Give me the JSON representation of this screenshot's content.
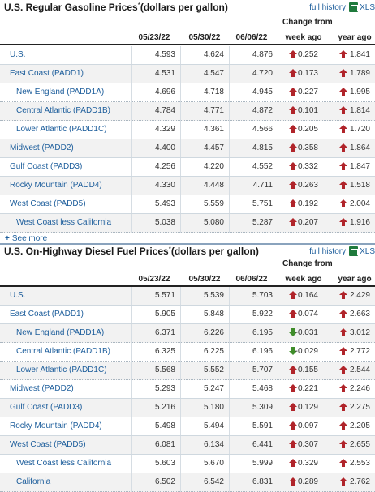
{
  "gasoline": {
    "title": "U.S. Regular Gasoline Prices",
    "title_sup": "*",
    "title_unit": "(dollars per gallon)",
    "full_history": "full history",
    "xls": "XLS",
    "change_from": "Change from",
    "columns": [
      "05/23/22",
      "05/30/22",
      "06/06/22",
      "week ago",
      "year ago"
    ],
    "rows": [
      {
        "label": "U.S.",
        "indent": 0,
        "v1": "4.593",
        "v2": "4.624",
        "v3": "4.876",
        "wk_dir": "up",
        "wk": "0.252",
        "yr_dir": "up",
        "yr": "1.841"
      },
      {
        "label": "East Coast (PADD1)",
        "indent": 0,
        "v1": "4.531",
        "v2": "4.547",
        "v3": "4.720",
        "wk_dir": "up",
        "wk": "0.173",
        "yr_dir": "up",
        "yr": "1.789"
      },
      {
        "label": "New England (PADD1A)",
        "indent": 1,
        "v1": "4.696",
        "v2": "4.718",
        "v3": "4.945",
        "wk_dir": "up",
        "wk": "0.227",
        "yr_dir": "up",
        "yr": "1.995"
      },
      {
        "label": "Central Atlantic (PADD1B)",
        "indent": 1,
        "v1": "4.784",
        "v2": "4.771",
        "v3": "4.872",
        "wk_dir": "up",
        "wk": "0.101",
        "yr_dir": "up",
        "yr": "1.814"
      },
      {
        "label": "Lower Atlantic (PADD1C)",
        "indent": 1,
        "v1": "4.329",
        "v2": "4.361",
        "v3": "4.566",
        "wk_dir": "up",
        "wk": "0.205",
        "yr_dir": "up",
        "yr": "1.720"
      },
      {
        "label": "Midwest (PADD2)",
        "indent": 0,
        "v1": "4.400",
        "v2": "4.457",
        "v3": "4.815",
        "wk_dir": "up",
        "wk": "0.358",
        "yr_dir": "up",
        "yr": "1.864"
      },
      {
        "label": "Gulf Coast (PADD3)",
        "indent": 0,
        "v1": "4.256",
        "v2": "4.220",
        "v3": "4.552",
        "wk_dir": "up",
        "wk": "0.332",
        "yr_dir": "up",
        "yr": "1.847"
      },
      {
        "label": "Rocky Mountain (PADD4)",
        "indent": 0,
        "v1": "4.330",
        "v2": "4.448",
        "v3": "4.711",
        "wk_dir": "up",
        "wk": "0.263",
        "yr_dir": "up",
        "yr": "1.518"
      },
      {
        "label": "West Coast (PADD5)",
        "indent": 0,
        "v1": "5.493",
        "v2": "5.559",
        "v3": "5.751",
        "wk_dir": "up",
        "wk": "0.192",
        "yr_dir": "up",
        "yr": "2.004"
      },
      {
        "label": "West Coast less California",
        "indent": 1,
        "v1": "5.038",
        "v2": "5.080",
        "v3": "5.287",
        "wk_dir": "up",
        "wk": "0.207",
        "yr_dir": "up",
        "yr": "1.916"
      }
    ],
    "see_more": "See more"
  },
  "diesel": {
    "title": "U.S. On-Highway Diesel Fuel Prices",
    "title_sup": "*",
    "title_unit": "(dollars per gallon)",
    "full_history": "full history",
    "xls": "XLS",
    "change_from": "Change from",
    "columns": [
      "05/23/22",
      "05/30/22",
      "06/06/22",
      "week ago",
      "year ago"
    ],
    "rows": [
      {
        "label": "U.S.",
        "indent": 0,
        "v1": "5.571",
        "v2": "5.539",
        "v3": "5.703",
        "wk_dir": "up",
        "wk": "0.164",
        "yr_dir": "up",
        "yr": "2.429"
      },
      {
        "label": "East Coast (PADD1)",
        "indent": 0,
        "v1": "5.905",
        "v2": "5.848",
        "v3": "5.922",
        "wk_dir": "up",
        "wk": "0.074",
        "yr_dir": "up",
        "yr": "2.663"
      },
      {
        "label": "New England (PADD1A)",
        "indent": 1,
        "v1": "6.371",
        "v2": "6.226",
        "v3": "6.195",
        "wk_dir": "down",
        "wk": "-0.031",
        "yr_dir": "up",
        "yr": "3.012"
      },
      {
        "label": "Central Atlantic (PADD1B)",
        "indent": 1,
        "v1": "6.325",
        "v2": "6.225",
        "v3": "6.196",
        "wk_dir": "down",
        "wk": "-0.029",
        "yr_dir": "up",
        "yr": "2.772"
      },
      {
        "label": "Lower Atlantic (PADD1C)",
        "indent": 1,
        "v1": "5.568",
        "v2": "5.552",
        "v3": "5.707",
        "wk_dir": "up",
        "wk": "0.155",
        "yr_dir": "up",
        "yr": "2.544"
      },
      {
        "label": "Midwest (PADD2)",
        "indent": 0,
        "v1": "5.293",
        "v2": "5.247",
        "v3": "5.468",
        "wk_dir": "up",
        "wk": "0.221",
        "yr_dir": "up",
        "yr": "2.246"
      },
      {
        "label": "Gulf Coast (PADD3)",
        "indent": 0,
        "v1": "5.216",
        "v2": "5.180",
        "v3": "5.309",
        "wk_dir": "up",
        "wk": "0.129",
        "yr_dir": "up",
        "yr": "2.275"
      },
      {
        "label": "Rocky Mountain (PADD4)",
        "indent": 0,
        "v1": "5.498",
        "v2": "5.494",
        "v3": "5.591",
        "wk_dir": "up",
        "wk": "0.097",
        "yr_dir": "up",
        "yr": "2.205"
      },
      {
        "label": "West Coast (PADD5)",
        "indent": 0,
        "v1": "6.081",
        "v2": "6.134",
        "v3": "6.441",
        "wk_dir": "up",
        "wk": "0.307",
        "yr_dir": "up",
        "yr": "2.655"
      },
      {
        "label": "West Coast less California",
        "indent": 1,
        "v1": "5.603",
        "v2": "5.670",
        "v3": "5.999",
        "wk_dir": "up",
        "wk": "0.329",
        "yr_dir": "up",
        "yr": "2.553"
      },
      {
        "label": "California",
        "indent": 1,
        "v1": "6.502",
        "v2": "6.542",
        "v3": "6.831",
        "wk_dir": "up",
        "wk": "0.289",
        "yr_dir": "up",
        "yr": "2.762"
      }
    ]
  },
  "colors": {
    "link": "#1c5d9b",
    "up_arrow": "#b0242a",
    "down_arrow": "#3f8d2a",
    "alt_row": "#f2f2f2"
  }
}
